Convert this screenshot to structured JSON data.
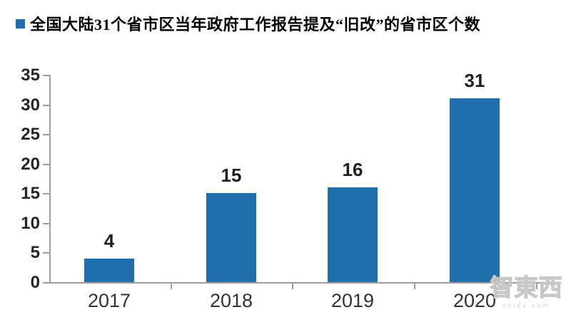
{
  "chart_data": {
    "type": "bar",
    "title": "全国大陆31个省市区当年政府工作报告提及“旧改”的省市区个数",
    "categories": [
      "2017",
      "2018",
      "2019",
      "2020"
    ],
    "values": [
      4,
      15,
      16,
      31
    ],
    "data_labels": [
      "4",
      "15",
      "16",
      "31"
    ],
    "xlabel": "",
    "ylabel": "",
    "ylim": [
      0,
      35
    ],
    "yticks": [
      0,
      5,
      10,
      15,
      20,
      25,
      30,
      35
    ],
    "grid": false,
    "legend_position": "top-left",
    "bar_color": "#1E6FAC",
    "axis_color": "#9e9e9e",
    "label_color": "#262626",
    "title_color": "#000000"
  },
  "legend": {
    "label": "全国大陆31个省市区当年政府工作报告提及“旧改”的省市区个数",
    "marker_color": "#1E6FAC"
  },
  "watermark": {
    "text": "智東西",
    "subtext": "zhidx.com"
  }
}
